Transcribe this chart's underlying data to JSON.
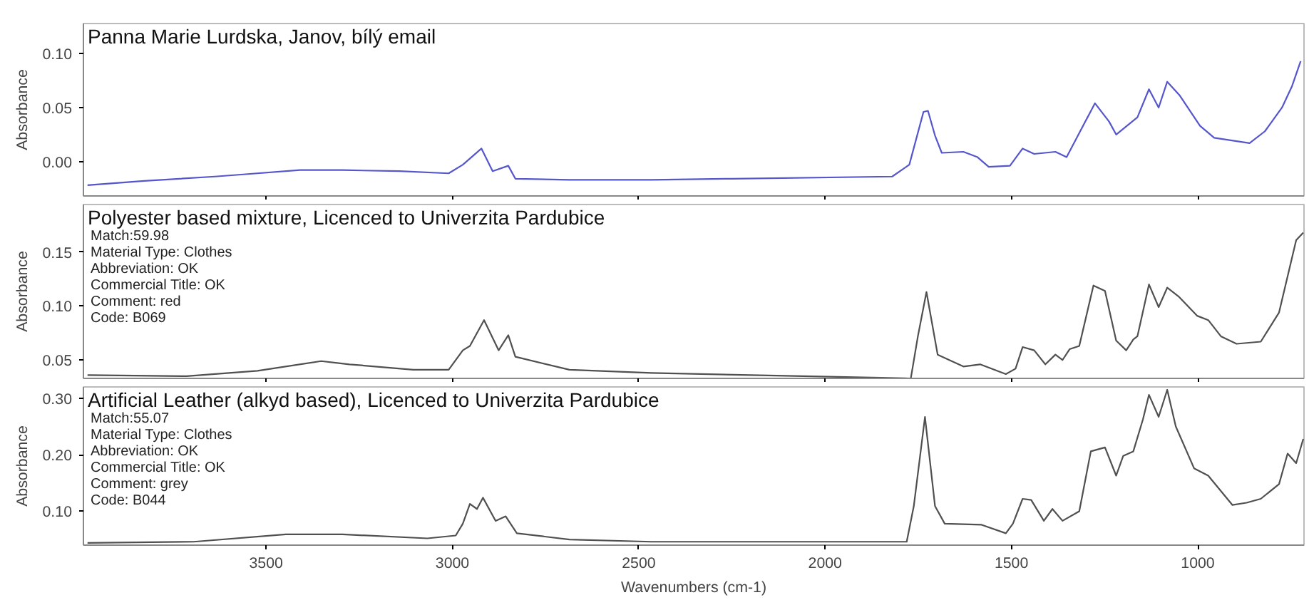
{
  "chart_data": [
    {
      "type": "line",
      "title": "Panna Marie Lurdska, Janov, bílý email",
      "ylabel": "Absorbance",
      "xlim": [
        3990,
        715
      ],
      "ylim": [
        -0.032,
        0.128
      ],
      "xticks": [
        3500,
        3000,
        2500,
        2000,
        1500,
        1000
      ],
      "yticks": [
        {
          "value": 0,
          "label": "0.00"
        },
        {
          "value": 0.05,
          "label": "0.05"
        },
        {
          "value": 0.1,
          "label": "0.10"
        }
      ],
      "tick_labels": "y",
      "x": [
        3979,
        3827,
        3637,
        3561,
        3409,
        3295,
        3143,
        3010,
        2972,
        2922,
        2892,
        2850,
        2831,
        2686,
        2466,
        2249,
        1820,
        1774,
        1736,
        1724,
        1705,
        1687,
        1629,
        1591,
        1561,
        1504,
        1470,
        1439,
        1382,
        1352,
        1276,
        1238,
        1219,
        1162,
        1131,
        1105,
        1082,
        1048,
        994,
        956,
        861,
        820,
        774,
        747,
        724
      ],
      "series": [
        {
          "color": "#5555cc",
          "values": [
            -0.022,
            -0.018,
            -0.014,
            -0.012,
            -0.008,
            -0.008,
            -0.009,
            -0.011,
            -0.003,
            0.012,
            -0.009,
            -0.004,
            -0.016,
            -0.017,
            -0.017,
            -0.016,
            -0.014,
            -0.003,
            0.046,
            0.047,
            0.024,
            0.008,
            0.009,
            0.004,
            -0.005,
            -0.004,
            0.012,
            0.007,
            0.009,
            0.004,
            0.054,
            0.037,
            0.025,
            0.041,
            0.067,
            0.05,
            0.074,
            0.061,
            0.033,
            0.022,
            0.017,
            0.028,
            0.05,
            0.07,
            0.093
          ]
        }
      ]
    },
    {
      "type": "line",
      "title": "Polyester based mixture, Licenced to Univerzita Pardubice",
      "ylabel": "Absorbance",
      "xlim": [
        3990,
        715
      ],
      "ylim": [
        0.033,
        0.194
      ],
      "xticks": [
        3500,
        3000,
        2500,
        2000,
        1500,
        1000
      ],
      "yticks": [
        {
          "value": 0.05,
          "label": "0.05"
        },
        {
          "value": 0.1,
          "label": "0.10"
        },
        {
          "value": 0.15,
          "label": "0.15"
        }
      ],
      "tick_labels": "y",
      "annotations": [
        "Match:59.98",
        "Material Type:  Clothes",
        "Abbreviation:  OK",
        "Commercial Title:  OK",
        "Comment:  red",
        "Code:  B069"
      ],
      "x": [
        3979,
        3713,
        3523,
        3352,
        3276,
        3105,
        3010,
        2972,
        2953,
        2915,
        2876,
        2850,
        2831,
        2686,
        2466,
        1770,
        1751,
        1728,
        1698,
        1629,
        1584,
        1515,
        1489,
        1470,
        1439,
        1409,
        1382,
        1363,
        1344,
        1318,
        1280,
        1249,
        1219,
        1192,
        1173,
        1162,
        1131,
        1105,
        1082,
        1052,
        1002,
        972,
        938,
        896,
        831,
        782,
        736,
        717
      ],
      "series": [
        {
          "color": "#505050",
          "values": [
            0.036,
            0.035,
            0.04,
            0.049,
            0.046,
            0.041,
            0.041,
            0.059,
            0.063,
            0.087,
            0.059,
            0.073,
            0.053,
            0.041,
            0.038,
            0.033,
            0.072,
            0.113,
            0.055,
            0.044,
            0.046,
            0.037,
            0.042,
            0.062,
            0.059,
            0.046,
            0.055,
            0.05,
            0.06,
            0.063,
            0.119,
            0.114,
            0.068,
            0.059,
            0.069,
            0.072,
            0.12,
            0.099,
            0.117,
            0.109,
            0.091,
            0.087,
            0.072,
            0.065,
            0.067,
            0.094,
            0.161,
            0.168
          ]
        }
      ]
    },
    {
      "type": "line",
      "title": "Artificial Leather (alkyd based), Licenced to Univerzita Pardubice",
      "ylabel": "Absorbance",
      "xlabel": "Wavenumbers (cm-1)",
      "xlim": [
        3990,
        715
      ],
      "ylim": [
        0.04,
        0.32
      ],
      "xticks": [
        3500,
        3000,
        2500,
        2000,
        1500,
        1000
      ],
      "yticks": [
        {
          "value": 0.1,
          "label": "0.10"
        },
        {
          "value": 0.2,
          "label": "0.20"
        },
        {
          "value": 0.3,
          "label": "0.30"
        }
      ],
      "annotations": [
        "Match:55.07",
        "Material Type:  Clothes",
        "Abbreviation:  OK",
        "Commercial Title:  OK",
        "Comment:  grey",
        "Code:  B044"
      ],
      "x": [
        3979,
        3694,
        3447,
        3295,
        3067,
        2991,
        2972,
        2953,
        2934,
        2918,
        2884,
        2857,
        2827,
        2686,
        2466,
        1781,
        1762,
        1732,
        1705,
        1679,
        1580,
        1515,
        1496,
        1470,
        1447,
        1413,
        1390,
        1363,
        1318,
        1287,
        1249,
        1219,
        1200,
        1173,
        1147,
        1131,
        1105,
        1082,
        1059,
        1010,
        972,
        907,
        869,
        831,
        782,
        759,
        736,
        717
      ],
      "series": [
        {
          "color": "#505050",
          "values": [
            0.044,
            0.046,
            0.059,
            0.059,
            0.052,
            0.057,
            0.078,
            0.113,
            0.104,
            0.124,
            0.083,
            0.091,
            0.061,
            0.05,
            0.046,
            0.046,
            0.109,
            0.267,
            0.109,
            0.078,
            0.076,
            0.061,
            0.078,
            0.122,
            0.12,
            0.083,
            0.104,
            0.083,
            0.1,
            0.206,
            0.213,
            0.163,
            0.198,
            0.206,
            0.263,
            0.306,
            0.267,
            0.315,
            0.25,
            0.176,
            0.163,
            0.111,
            0.115,
            0.122,
            0.148,
            0.202,
            0.185,
            0.228
          ]
        }
      ]
    }
  ]
}
